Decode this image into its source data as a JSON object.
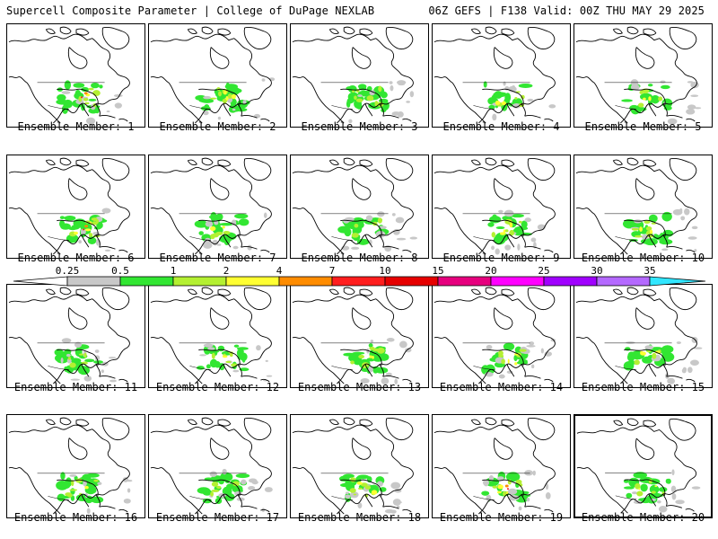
{
  "header": {
    "title_left": "Supercell Composite Parameter | College of DuPage NEXLAB",
    "title_right": "06Z GEFS | F138 Valid: 00Z THU MAY 29 2025"
  },
  "caption_prefix": "Ensemble Member: ",
  "members": [
    1,
    2,
    3,
    4,
    5,
    6,
    7,
    8,
    9,
    10,
    11,
    12,
    13,
    14,
    15,
    16,
    17,
    18,
    19,
    20
  ],
  "colorbar": {
    "ticks": [
      "0.25",
      "0.5",
      "1",
      "2",
      "4",
      "7",
      "10",
      "15",
      "20",
      "25",
      "30",
      "35"
    ],
    "colors": [
      "#c8c8c8",
      "#32e632",
      "#b4f032",
      "#ffff32",
      "#ff8c00",
      "#ff1e1e",
      "#e60000",
      "#e6007e",
      "#ff00ff",
      "#a000ff",
      "#b469ff",
      "#5af0ff",
      "#32e6ff"
    ]
  },
  "map_colors": {
    "gray": "#c8c8c8",
    "green": "#32e632",
    "lightgreen": "#b4f032",
    "yellow": "#ffff32",
    "orange": "#ff8c00",
    "red": "#ff1e1e"
  }
}
